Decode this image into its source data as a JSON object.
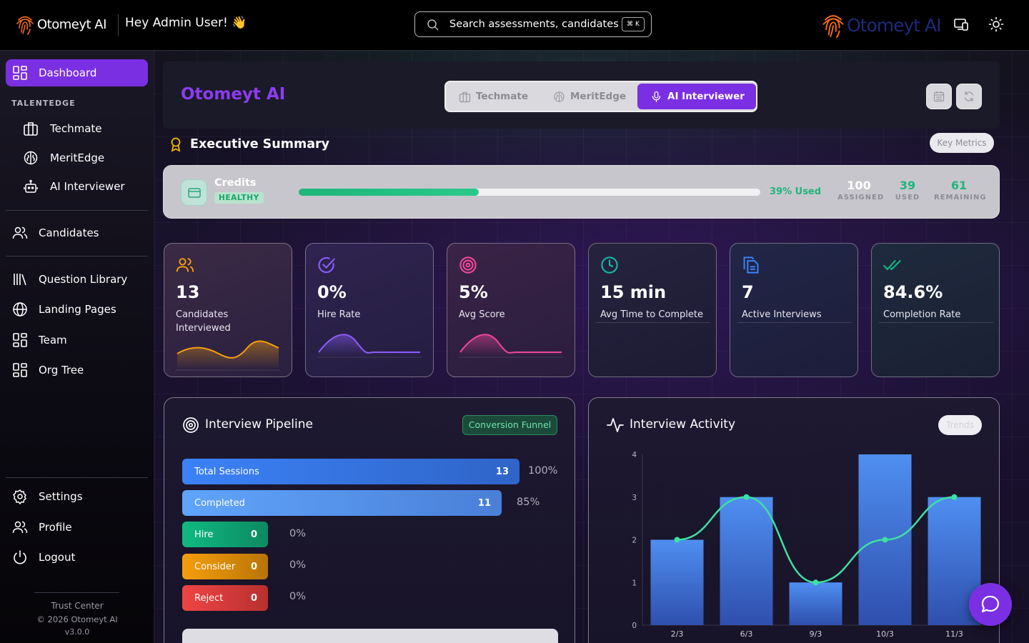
{
  "topbar": {
    "brand": "Otomeyt AI",
    "greeting": "Hey Admin User! 👋",
    "search_placeholder": "Search assessments, candidates",
    "shortcut": "⌘ K",
    "right_brand": "Otomeyt AI"
  },
  "sidebar": {
    "items": [
      {
        "label": "Dashboard",
        "icon": "dashboard-icon"
      },
      {
        "label": "Techmate",
        "icon": "briefcase-icon"
      },
      {
        "label": "MeritEdge",
        "icon": "brain-icon"
      },
      {
        "label": "AI Interviewer",
        "icon": "bot-icon"
      },
      {
        "label": "Candidates",
        "icon": "users-icon"
      },
      {
        "label": "Question Library",
        "icon": "library-icon"
      },
      {
        "label": "Landing Pages",
        "icon": "globe-icon"
      },
      {
        "label": "Team",
        "icon": "grid-icon"
      },
      {
        "label": "Org Tree",
        "icon": "grid-icon"
      },
      {
        "label": "Settings",
        "icon": "gear-icon"
      },
      {
        "label": "Profile",
        "icon": "user-icon"
      },
      {
        "label": "Logout",
        "icon": "power-icon"
      }
    ],
    "section_label": "TALENTEDGE",
    "footer": {
      "trust": "Trust Center",
      "copyright": "© 2026 Otomeyt AI",
      "version": "v3.0.0"
    }
  },
  "header": {
    "org_title": "Otomeyt AI",
    "tabs": [
      {
        "label": "Techmate",
        "active": false
      },
      {
        "label": "MeritEdge",
        "active": false
      },
      {
        "label": "AI Interviewer",
        "active": true
      }
    ]
  },
  "summary": {
    "title": "Executive Summary",
    "key_metrics": "Key Metrics"
  },
  "credits": {
    "title": "Credits",
    "badge": "HEALTHY",
    "used_fraction": 0.39,
    "used_text": "39% Used",
    "assigned": "100",
    "assigned_label": "ASSIGNED",
    "used": "39",
    "used_label": "USED",
    "remaining": "61",
    "remaining_label": "REMAINING"
  },
  "kpis": [
    {
      "value": "13",
      "label": "Candidates Interviewed",
      "color": "#f59e0b",
      "icon": "users-icon"
    },
    {
      "value": "0%",
      "label": "Hire Rate",
      "color": "#8b5cf6",
      "icon": "check-circle-icon"
    },
    {
      "value": "5%",
      "label": "Avg Score",
      "color": "#ec4899",
      "icon": "target-icon"
    },
    {
      "value": "15 min",
      "label": "Avg Time to Complete",
      "color": "#14b8a6",
      "icon": "clock-icon"
    },
    {
      "value": "7",
      "label": "Active Interviews",
      "color": "#3b82f6",
      "icon": "copy-icon"
    },
    {
      "value": "84.6%",
      "label": "Completion Rate",
      "color": "#10b981",
      "icon": "double-check-icon"
    }
  ],
  "pipeline": {
    "title": "Interview Pipeline",
    "tag": "Conversion Funnel",
    "stages": [
      {
        "label": "Total Sessions",
        "value": "13",
        "pct": "100%",
        "color": "#3b82f6"
      },
      {
        "label": "Completed",
        "value": "11",
        "pct": "85%",
        "color": "#60a5fa"
      },
      {
        "label": "Hire",
        "value": "0",
        "pct": "0%",
        "color": "#10b981"
      },
      {
        "label": "Consider",
        "value": "0",
        "pct": "0%",
        "color": "#f59e0b"
      },
      {
        "label": "Reject",
        "value": "0",
        "pct": "0%",
        "color": "#ef4444"
      }
    ]
  },
  "activity": {
    "title": "Interview Activity",
    "tag": "Trends"
  },
  "chart_data": {
    "type": "bar",
    "categories": [
      "2/3",
      "6/3",
      "9/3",
      "10/3",
      "11/3"
    ],
    "series": [
      {
        "type": "bar",
        "values": [
          2,
          3,
          1,
          4,
          3
        ]
      },
      {
        "type": "line",
        "values": [
          2,
          3,
          1,
          2,
          3
        ]
      }
    ],
    "ylim": [
      0,
      4
    ],
    "yticks": [
      "0",
      "1",
      "2",
      "3",
      "4"
    ],
    "grid": false
  }
}
